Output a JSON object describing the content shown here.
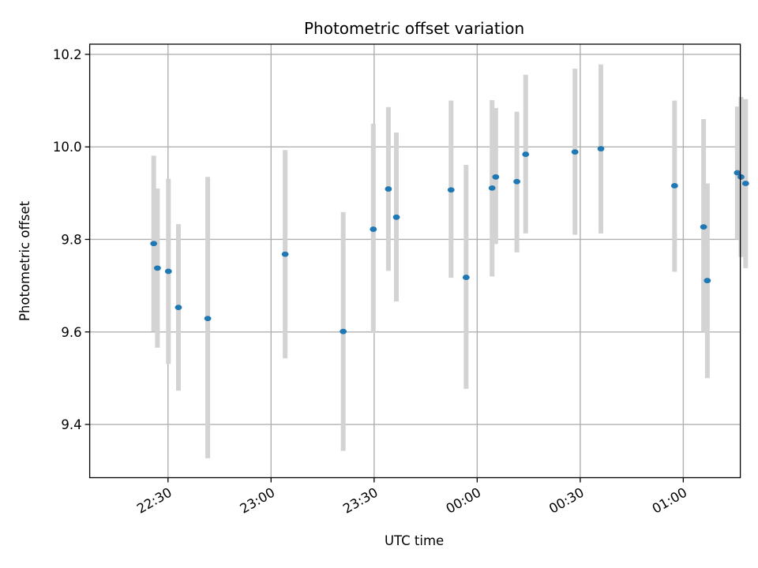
{
  "chart_data": {
    "type": "scatter",
    "title": "Photometric offset variation",
    "xlabel": "UTC time",
    "ylabel": "Photometric offset",
    "x_range_minutes_since_midnight_prev_day": [
      1327.2,
      1516.6
    ],
    "ylim": [
      9.285,
      10.222
    ],
    "x_ticks": [
      {
        "label": "22:30",
        "minute": 1350
      },
      {
        "label": "23:00",
        "minute": 1380
      },
      {
        "label": "23:30",
        "minute": 1410
      },
      {
        "label": "00:00",
        "minute": 1440
      },
      {
        "label": "00:30",
        "minute": 1470
      },
      {
        "label": "01:00",
        "minute": 1500
      }
    ],
    "y_ticks": [
      {
        "label": "9.4",
        "value": 9.4
      },
      {
        "label": "9.6",
        "value": 9.6
      },
      {
        "label": "9.8",
        "value": 9.8
      },
      {
        "label": "10.0",
        "value": 10.0
      },
      {
        "label": "10.2",
        "value": 10.2
      }
    ],
    "grid": true,
    "marker_color": "#1f77b4",
    "errorbar_color": "#d3d3d3",
    "points": [
      {
        "time": "22:25:50",
        "y": 9.791,
        "low": 9.601,
        "high": 9.981
      },
      {
        "time": "22:26:55",
        "y": 9.738,
        "low": 9.566,
        "high": 9.91
      },
      {
        "time": "22:30:07",
        "y": 9.731,
        "low": 9.531,
        "high": 9.931
      },
      {
        "time": "22:33:02",
        "y": 9.653,
        "low": 9.473,
        "high": 9.833
      },
      {
        "time": "22:41:34",
        "y": 9.629,
        "low": 9.327,
        "high": 9.935
      },
      {
        "time": "23:04:06",
        "y": 9.768,
        "low": 9.543,
        "high": 9.993
      },
      {
        "time": "23:21:00",
        "y": 9.601,
        "low": 9.343,
        "high": 9.859
      },
      {
        "time": "23:29:46",
        "y": 9.822,
        "low": 9.598,
        "high": 10.05
      },
      {
        "time": "23:34:09",
        "y": 9.909,
        "low": 9.732,
        "high": 10.086
      },
      {
        "time": "23:36:29",
        "y": 9.848,
        "low": 9.666,
        "high": 10.031
      },
      {
        "time": "23:52:24",
        "y": 9.907,
        "low": 9.717,
        "high": 10.1
      },
      {
        "time": "23:56:47",
        "y": 9.718,
        "low": 9.477,
        "high": 9.961
      },
      {
        "time": "00:04:20",
        "y": 9.911,
        "low": 9.72,
        "high": 10.101
      },
      {
        "time": "00:05:24",
        "y": 9.935,
        "low": 9.79,
        "high": 10.084
      },
      {
        "time": "00:11:33",
        "y": 9.925,
        "low": 9.772,
        "high": 10.076
      },
      {
        "time": "00:14:07",
        "y": 9.984,
        "low": 9.813,
        "high": 10.156
      },
      {
        "time": "00:28:28",
        "y": 9.989,
        "low": 9.81,
        "high": 10.169
      },
      {
        "time": "00:36:01",
        "y": 9.996,
        "low": 9.813,
        "high": 10.178
      },
      {
        "time": "00:57:28",
        "y": 9.916,
        "low": 9.73,
        "high": 10.1
      },
      {
        "time": "01:05:55",
        "y": 9.827,
        "low": 9.6,
        "high": 10.06
      },
      {
        "time": "01:07:00",
        "y": 9.711,
        "low": 9.5,
        "high": 9.921
      },
      {
        "time": "01:15:44",
        "y": 9.944,
        "low": 9.8,
        "high": 10.087
      },
      {
        "time": "01:16:48",
        "y": 9.935,
        "low": 9.762,
        "high": 10.108
      },
      {
        "time": "01:18:09",
        "y": 9.921,
        "low": 9.738,
        "high": 10.103
      }
    ]
  }
}
